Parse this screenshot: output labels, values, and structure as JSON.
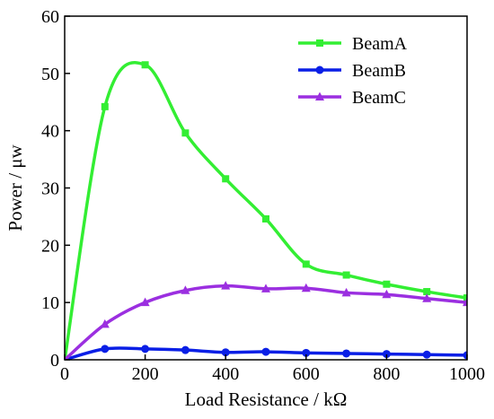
{
  "chart_data": {
    "type": "line",
    "xlabel": "Load Resistance / kΩ",
    "ylabel": "Power / μw",
    "xlim": [
      0,
      1000
    ],
    "ylim": [
      0,
      60
    ],
    "xticks": [
      0,
      200,
      400,
      600,
      800,
      1000
    ],
    "yticks": [
      0,
      10,
      20,
      30,
      40,
      50,
      60
    ],
    "xtick_labels": [
      "0",
      "200",
      "400",
      "600",
      "800",
      "1000"
    ],
    "ytick_labels": [
      "0",
      "10",
      "20",
      "30",
      "40",
      "50",
      "60"
    ],
    "grid": false,
    "legend_position": "top-right",
    "series": [
      {
        "name": "BeamA",
        "color": "#33ee33",
        "marker": "square",
        "x": [
          0,
          100,
          200,
          300,
          400,
          500,
          600,
          700,
          800,
          900,
          1000
        ],
        "y": [
          0,
          44.2,
          51.5,
          39.6,
          31.6,
          24.6,
          16.7,
          14.8,
          13.2,
          11.9,
          10.8
        ]
      },
      {
        "name": "BeamB",
        "color": "#0a1fe6",
        "marker": "circle",
        "x": [
          0,
          100,
          200,
          300,
          400,
          500,
          600,
          700,
          800,
          900,
          1000
        ],
        "y": [
          0,
          1.9,
          1.9,
          1.7,
          1.3,
          1.4,
          1.2,
          1.1,
          1.0,
          0.9,
          0.8
        ]
      },
      {
        "name": "BeamC",
        "color": "#9b2fe0",
        "marker": "triangle",
        "x": [
          0,
          100,
          200,
          300,
          400,
          500,
          600,
          700,
          800,
          900,
          1000
        ],
        "y": [
          0,
          6.2,
          10.0,
          12.1,
          12.9,
          12.4,
          12.5,
          11.7,
          11.4,
          10.7,
          10.0
        ]
      }
    ]
  }
}
